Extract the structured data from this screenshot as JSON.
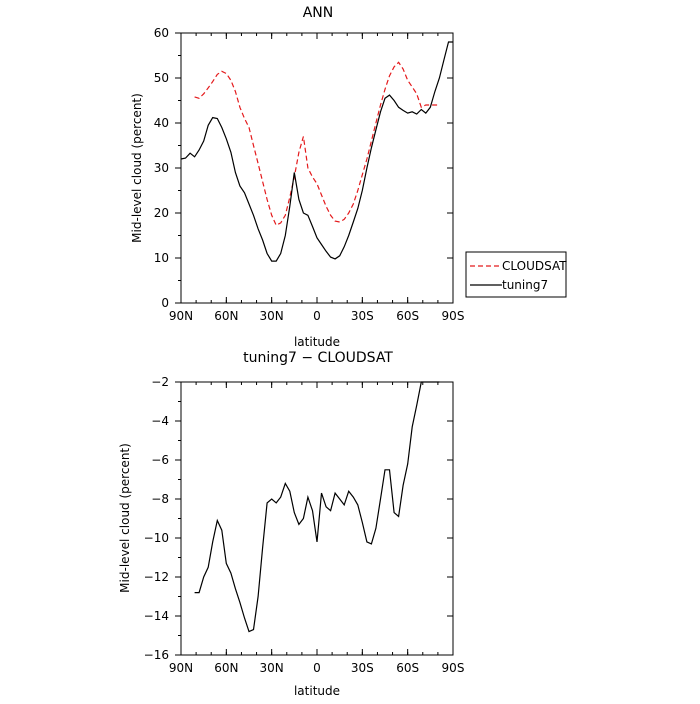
{
  "chart_data": [
    {
      "type": "line",
      "title": "ANN",
      "xlabel": "latitude",
      "ylabel": "Mid-level cloud (percent)",
      "xlim": [
        90,
        -90
      ],
      "ylim": [
        0,
        60
      ],
      "x_ticks": [
        90,
        60,
        30,
        0,
        -30,
        -60,
        -90
      ],
      "x_tick_labels": [
        "90N",
        "60N",
        "30N",
        "0",
        "30S",
        "60S",
        "90S"
      ],
      "y_ticks": [
        0,
        10,
        20,
        30,
        40,
        50,
        60
      ],
      "legend_position": "right",
      "series": [
        {
          "name": "CLOUDSAT",
          "color": "#e41a1c",
          "dash": "dashed",
          "x": [
            81,
            78,
            75,
            72,
            69,
            66,
            63,
            60,
            57,
            54,
            51,
            48,
            45,
            42,
            39,
            36,
            33,
            30,
            27,
            24,
            21,
            18,
            15,
            12,
            9,
            6,
            3,
            0,
            -3,
            -6,
            -9,
            -12,
            -15,
            -18,
            -21,
            -24,
            -27,
            -30,
            -33,
            -36,
            -39,
            -42,
            -45,
            -48,
            -51,
            -54,
            -57,
            -60,
            -63,
            -66,
            -69,
            -72,
            -75,
            -78,
            -81
          ],
          "y": [
            45.8,
            45.5,
            46.5,
            47.8,
            49.2,
            50.8,
            51.5,
            51.0,
            49.5,
            47.0,
            43.5,
            41.0,
            39.0,
            35.0,
            31.0,
            27.0,
            23.0,
            19.5,
            17.3,
            17.8,
            19.5,
            23.5,
            28.0,
            33.5,
            37.0,
            30.0,
            28.0,
            26.5,
            24.0,
            21.5,
            19.5,
            18.2,
            18.0,
            18.6,
            20.0,
            22.0,
            25.0,
            28.5,
            32.0,
            36.0,
            40.0,
            44.0,
            47.5,
            50.5,
            52.5,
            53.5,
            52.0,
            49.5,
            48.0,
            46.5,
            43.5,
            44.0,
            44.0,
            44.0,
            44.0
          ]
        },
        {
          "name": "tuning7",
          "color": "#000000",
          "dash": "solid",
          "x": [
            90,
            87,
            84,
            81,
            78,
            75,
            72,
            69,
            66,
            63,
            60,
            57,
            54,
            51,
            48,
            45,
            42,
            39,
            36,
            33,
            30,
            27,
            24,
            21,
            18,
            15,
            12,
            9,
            6,
            3,
            0,
            -3,
            -6,
            -9,
            -12,
            -15,
            -18,
            -21,
            -24,
            -27,
            -30,
            -33,
            -36,
            -39,
            -42,
            -45,
            -48,
            -51,
            -54,
            -57,
            -60,
            -63,
            -66,
            -69,
            -72,
            -75,
            -78,
            -81,
            -84,
            -87,
            -90
          ],
          "y": [
            32.0,
            32.2,
            33.3,
            32.5,
            34.0,
            36.0,
            39.5,
            41.2,
            41.0,
            39.0,
            36.5,
            33.5,
            29.0,
            26.0,
            24.5,
            22.0,
            19.5,
            16.5,
            14.0,
            11.0,
            9.3,
            9.3,
            11.0,
            15.0,
            21.5,
            29.0,
            23.0,
            20.0,
            19.5,
            17.0,
            14.5,
            13.0,
            11.5,
            10.2,
            9.8,
            10.5,
            12.5,
            15.0,
            18.0,
            21.0,
            25.0,
            30.0,
            34.5,
            38.5,
            42.5,
            45.5,
            46.2,
            45.0,
            43.5,
            42.8,
            42.2,
            42.5,
            42.0,
            43.0,
            42.2,
            43.5,
            47.0,
            50.0,
            54.0,
            58.0,
            58.0
          ]
        }
      ]
    },
    {
      "type": "line",
      "title": "tuning7 − CLOUDSAT",
      "xlabel": "latitude",
      "ylabel": "Mid-level cloud (percent)",
      "xlim": [
        90,
        -90
      ],
      "ylim": [
        -16,
        -2
      ],
      "x_ticks": [
        90,
        60,
        30,
        0,
        -30,
        -60,
        -90
      ],
      "x_tick_labels": [
        "90N",
        "60N",
        "30N",
        "0",
        "30S",
        "60S",
        "90S"
      ],
      "y_ticks": [
        -16,
        -14,
        -12,
        -10,
        -8,
        -6,
        -4,
        -2
      ],
      "series": [
        {
          "color": "#000000",
          "dash": "solid",
          "x": [
            81,
            78,
            75,
            72,
            69,
            66,
            63,
            60,
            57,
            54,
            51,
            48,
            45,
            42,
            39,
            36,
            33,
            30,
            27,
            24,
            21,
            18,
            15,
            12,
            9,
            6,
            3,
            0,
            -3,
            -6,
            -9,
            -12,
            -15,
            -18,
            -21,
            -24,
            -27,
            -30,
            -33,
            -36,
            -39,
            -42,
            -45,
            -48,
            -51,
            -54,
            -57,
            -60,
            -63,
            -66,
            -69,
            -72,
            -75,
            -78,
            -81
          ],
          "y": [
            -12.8,
            -12.8,
            -12.0,
            -11.5,
            -10.2,
            -9.1,
            -9.6,
            -11.3,
            -11.8,
            -12.6,
            -13.3,
            -14.1,
            -14.8,
            -14.7,
            -13.0,
            -10.5,
            -8.2,
            -8.0,
            -8.2,
            -7.9,
            -7.2,
            -7.6,
            -8.7,
            -9.3,
            -9.0,
            -7.9,
            -8.6,
            -10.2,
            -7.7,
            -8.4,
            -8.6,
            -7.7,
            -8.0,
            -8.3,
            -7.6,
            -7.9,
            -8.3,
            -9.2,
            -10.2,
            -10.3,
            -9.5,
            -8.0,
            -6.5,
            -6.5,
            -8.7,
            -8.9,
            -7.3,
            -6.2,
            -4.3,
            -3.2,
            -2.0,
            -1.8,
            -1.5,
            -1.2,
            -1.0
          ]
        }
      ]
    }
  ]
}
